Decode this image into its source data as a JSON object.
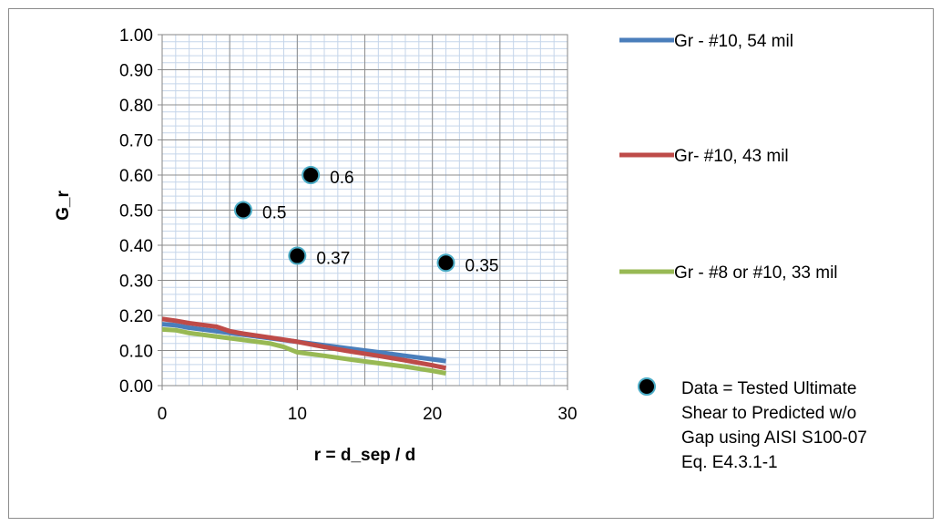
{
  "chart_data": {
    "type": "line",
    "title": "",
    "xlabel": "r = d_sep / d",
    "ylabel": "G_r",
    "xlim": [
      0,
      30
    ],
    "ylim": [
      0,
      1
    ],
    "xticks": [
      "0",
      "10",
      "20",
      "30"
    ],
    "yticks": [
      "0.00",
      "0.10",
      "0.20",
      "0.30",
      "0.40",
      "0.50",
      "0.60",
      "0.70",
      "0.80",
      "0.90",
      "1.00"
    ],
    "grid": true,
    "legend_position": "right",
    "series": [
      {
        "name": "Gr - #10, 54 mil",
        "kind": "line",
        "color": "#4a7ebb",
        "points": [
          [
            0,
            0.175
          ],
          [
            1,
            0.172
          ],
          [
            2,
            0.165
          ],
          [
            4,
            0.155
          ],
          [
            6,
            0.145
          ],
          [
            8,
            0.135
          ],
          [
            10,
            0.125
          ],
          [
            12,
            0.115
          ],
          [
            14,
            0.105
          ],
          [
            16,
            0.095
          ],
          [
            18,
            0.085
          ],
          [
            20,
            0.075
          ],
          [
            21,
            0.07
          ]
        ]
      },
      {
        "name": "Gr- #10, 43 mil",
        "kind": "line",
        "color": "#be4b48",
        "points": [
          [
            0,
            0.19
          ],
          [
            1,
            0.185
          ],
          [
            2,
            0.178
          ],
          [
            4,
            0.168
          ],
          [
            5,
            0.155
          ],
          [
            6,
            0.148
          ],
          [
            8,
            0.137
          ],
          [
            10,
            0.125
          ],
          [
            12,
            0.11
          ],
          [
            14,
            0.097
          ],
          [
            16,
            0.085
          ],
          [
            18,
            0.072
          ],
          [
            20,
            0.058
          ],
          [
            21,
            0.05
          ]
        ]
      },
      {
        "name": "Gr - #8 or #10, 33 mil",
        "kind": "line",
        "color": "#98b954",
        "points": [
          [
            0,
            0.16
          ],
          [
            1,
            0.158
          ],
          [
            2,
            0.15
          ],
          [
            4,
            0.14
          ],
          [
            6,
            0.13
          ],
          [
            8,
            0.12
          ],
          [
            9,
            0.11
          ],
          [
            10,
            0.095
          ],
          [
            12,
            0.085
          ],
          [
            14,
            0.074
          ],
          [
            16,
            0.064
          ],
          [
            18,
            0.054
          ],
          [
            20,
            0.042
          ],
          [
            21,
            0.035
          ]
        ]
      },
      {
        "name": "Data = Tested Ultimate Shear to Predicted w/o Gap using AISI S100-07 Eq. E4.3.1-1",
        "legend_lines": [
          "Data = Tested Ultimate",
          "Shear to Predicted w/o",
          "Gap using AISI S100-07",
          "Eq. E4.3.1-1"
        ],
        "kind": "scatter",
        "marker_fill": "#000000",
        "marker_edge": "#4bacc6",
        "points": [
          [
            6,
            0.5
          ],
          [
            11,
            0.6
          ],
          [
            10,
            0.37
          ],
          [
            21,
            0.35
          ]
        ],
        "labels": [
          "0.5",
          "0.6",
          "0.37",
          "0.35"
        ]
      }
    ]
  }
}
